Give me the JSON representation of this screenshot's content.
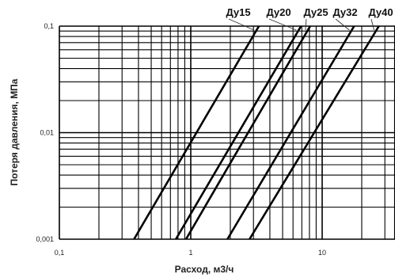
{
  "chart_data": {
    "type": "line",
    "xlabel": "Расход, м3/ч",
    "ylabel": "Потеря давления, МПа",
    "x_scale": "log",
    "y_scale": "log",
    "xlim": [
      0.1,
      30
    ],
    "ylim": [
      0.001,
      0.1
    ],
    "x_ticks": [
      "0,1",
      "1",
      "10"
    ],
    "y_ticks": [
      "0,001",
      "0,01",
      "0,1"
    ],
    "grid": true,
    "legend": "top-right",
    "series": [
      {
        "name": "Ду15",
        "points": [
          [
            0.37,
            0.001
          ],
          [
            3.3,
            0.1
          ]
        ]
      },
      {
        "name": "Ду20",
        "points": [
          [
            0.77,
            0.001
          ],
          [
            6.9,
            0.1
          ]
        ]
      },
      {
        "name": "Ду25",
        "points": [
          [
            0.92,
            0.001
          ],
          [
            8.1,
            0.1
          ]
        ]
      },
      {
        "name": "Ду32",
        "points": [
          [
            1.9,
            0.001
          ],
          [
            17.5,
            0.1
          ]
        ]
      },
      {
        "name": "Ду40",
        "points": [
          [
            2.8,
            0.001
          ],
          [
            27,
            0.1
          ]
        ]
      }
    ]
  }
}
